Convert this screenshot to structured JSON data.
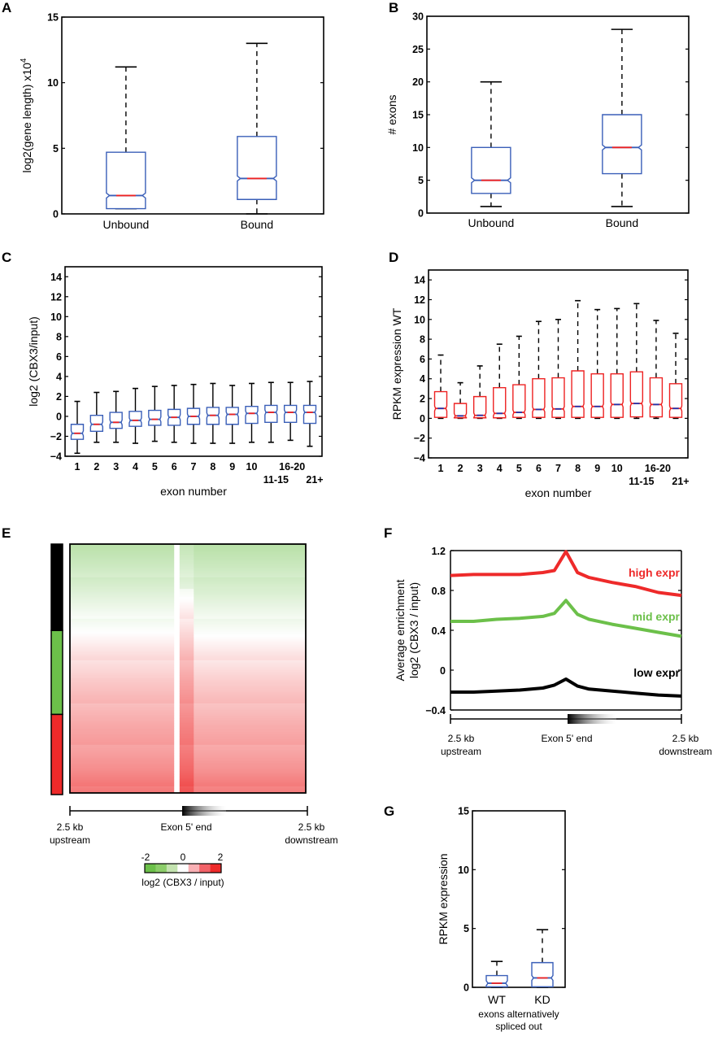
{
  "figure": {
    "panel_letters": [
      "A",
      "B",
      "C",
      "D",
      "E",
      "F",
      "G"
    ]
  },
  "chart_data": [
    {
      "id": "A",
      "type": "box",
      "title": "",
      "xlabel": "",
      "ylabel": "log2(gene length) x10",
      "ylabel_exponent": "4",
      "ylim": [
        0,
        15
      ],
      "yticks": [
        0,
        5,
        10,
        15
      ],
      "categories": [
        "Unbound",
        "Bound"
      ],
      "notched": true,
      "box_color": "#3a5fb8",
      "median_color": "#ee2222",
      "boxes": [
        {
          "label": "Unbound",
          "whisker_low": 0.4,
          "q1": 0.4,
          "median": 1.4,
          "q3": 4.7,
          "whisker_high": 11.2
        },
        {
          "label": "Bound",
          "whisker_low": 0.0,
          "q1": 1.1,
          "median": 2.7,
          "q3": 5.9,
          "whisker_high": 13.0
        }
      ]
    },
    {
      "id": "B",
      "type": "box",
      "title": "",
      "xlabel": "",
      "ylabel": "# exons",
      "ylim": [
        0,
        30
      ],
      "yticks": [
        0,
        5,
        10,
        15,
        20,
        25,
        30
      ],
      "categories": [
        "Unbound",
        "Bound"
      ],
      "notched": true,
      "box_color": "#3a5fb8",
      "median_color": "#ee2222",
      "boxes": [
        {
          "label": "Unbound",
          "whisker_low": 1,
          "q1": 3,
          "median": 5,
          "q3": 10,
          "whisker_high": 20
        },
        {
          "label": "Bound",
          "whisker_low": 1,
          "q1": 6,
          "median": 10,
          "q3": 15,
          "whisker_high": 28
        }
      ]
    },
    {
      "id": "C",
      "type": "box",
      "title": "",
      "xlabel": "exon number",
      "ylabel": "log2 (CBX3/input)",
      "ylim": [
        -4,
        15
      ],
      "yticks": [
        -4,
        -2,
        0,
        2,
        4,
        6,
        8,
        10,
        12,
        14
      ],
      "categories": [
        "1",
        "2",
        "3",
        "4",
        "5",
        "6",
        "7",
        "8",
        "9",
        "10",
        "11-15",
        "16-20",
        "21+"
      ],
      "tick_row": [
        0,
        0,
        0,
        0,
        0,
        0,
        0,
        0,
        0,
        0,
        1,
        0,
        1
      ],
      "notched": true,
      "box_color": "#3a5fb8",
      "median_color": "#ee2222",
      "boxes": [
        {
          "label": "1",
          "whisker_low": -3.7,
          "q1": -2.3,
          "median": -1.7,
          "q3": -0.8,
          "whisker_high": 1.5
        },
        {
          "label": "2",
          "whisker_low": -2.6,
          "q1": -1.5,
          "median": -0.8,
          "q3": 0.1,
          "whisker_high": 2.4
        },
        {
          "label": "3",
          "whisker_low": -2.6,
          "q1": -1.2,
          "median": -0.6,
          "q3": 0.4,
          "whisker_high": 2.5
        },
        {
          "label": "4",
          "whisker_low": -2.7,
          "q1": -1.0,
          "median": -0.4,
          "q3": 0.5,
          "whisker_high": 2.8
        },
        {
          "label": "5",
          "whisker_low": -2.5,
          "q1": -0.9,
          "median": -0.3,
          "q3": 0.6,
          "whisker_high": 3.0
        },
        {
          "label": "6",
          "whisker_low": -2.6,
          "q1": -0.9,
          "median": -0.1,
          "q3": 0.7,
          "whisker_high": 3.1
        },
        {
          "label": "7",
          "whisker_low": -2.7,
          "q1": -0.8,
          "median": 0.0,
          "q3": 0.8,
          "whisker_high": 3.2
        },
        {
          "label": "8",
          "whisker_low": -2.7,
          "q1": -0.8,
          "median": 0.1,
          "q3": 0.9,
          "whisker_high": 3.3
        },
        {
          "label": "9",
          "whisker_low": -2.7,
          "q1": -0.8,
          "median": 0.2,
          "q3": 0.9,
          "whisker_high": 3.1
        },
        {
          "label": "10",
          "whisker_low": -2.6,
          "q1": -0.7,
          "median": 0.3,
          "q3": 1.0,
          "whisker_high": 3.3
        },
        {
          "label": "11-15",
          "whisker_low": -2.6,
          "q1": -0.6,
          "median": 0.4,
          "q3": 1.1,
          "whisker_high": 3.4
        },
        {
          "label": "16-20",
          "whisker_low": -2.4,
          "q1": -0.6,
          "median": 0.4,
          "q3": 1.1,
          "whisker_high": 3.4
        },
        {
          "label": "21+",
          "whisker_low": -3.0,
          "q1": -0.7,
          "median": 0.4,
          "q3": 1.1,
          "whisker_high": 3.5
        }
      ]
    },
    {
      "id": "D",
      "type": "box",
      "title": "",
      "xlabel": "exon number",
      "ylabel": "RPKM expression WT",
      "ylim": [
        -4,
        15
      ],
      "yticks": [
        -4,
        -2,
        0,
        2,
        4,
        6,
        8,
        10,
        12,
        14
      ],
      "categories": [
        "1",
        "2",
        "3",
        "4",
        "5",
        "6",
        "7",
        "8",
        "9",
        "10",
        "11-15",
        "16-20",
        "21+"
      ],
      "tick_row": [
        0,
        0,
        0,
        0,
        0,
        0,
        0,
        0,
        0,
        0,
        1,
        0,
        1
      ],
      "notched": true,
      "box_color": "#ee2222",
      "median_color": "#2233aa",
      "boxes": [
        {
          "label": "1",
          "whisker_low": 0,
          "q1": 0.1,
          "median": 1.0,
          "q3": 2.7,
          "whisker_high": 6.4
        },
        {
          "label": "2",
          "whisker_low": 0,
          "q1": 0.05,
          "median": 0.25,
          "q3": 1.5,
          "whisker_high": 3.6
        },
        {
          "label": "3",
          "whisker_low": 0,
          "q1": 0.05,
          "median": 0.3,
          "q3": 2.2,
          "whisker_high": 5.3
        },
        {
          "label": "4",
          "whisker_low": 0,
          "q1": 0.05,
          "median": 0.5,
          "q3": 3.1,
          "whisker_high": 7.5
        },
        {
          "label": "5",
          "whisker_low": 0,
          "q1": 0.1,
          "median": 0.6,
          "q3": 3.4,
          "whisker_high": 8.3
        },
        {
          "label": "6",
          "whisker_low": 0,
          "q1": 0.1,
          "median": 0.9,
          "q3": 4.0,
          "whisker_high": 9.8
        },
        {
          "label": "7",
          "whisker_low": 0,
          "q1": 0.1,
          "median": 0.95,
          "q3": 4.1,
          "whisker_high": 10.0
        },
        {
          "label": "8",
          "whisker_low": 0,
          "q1": 0.1,
          "median": 1.2,
          "q3": 4.8,
          "whisker_high": 11.9
        },
        {
          "label": "9",
          "whisker_low": 0,
          "q1": 0.1,
          "median": 1.2,
          "q3": 4.5,
          "whisker_high": 11.0
        },
        {
          "label": "10",
          "whisker_low": 0,
          "q1": 0.1,
          "median": 1.4,
          "q3": 4.5,
          "whisker_high": 11.1
        },
        {
          "label": "11-15",
          "whisker_low": 0,
          "q1": 0.15,
          "median": 1.5,
          "q3": 4.7,
          "whisker_high": 11.6
        },
        {
          "label": "16-20",
          "whisker_low": 0,
          "q1": 0.15,
          "median": 1.4,
          "q3": 4.1,
          "whisker_high": 9.9
        },
        {
          "label": "21+",
          "whisker_low": 0,
          "q1": 0.1,
          "median": 1.0,
          "q3": 3.5,
          "whisker_high": 8.6
        }
      ]
    },
    {
      "id": "E",
      "type": "heatmap",
      "title": "",
      "x_left_label": [
        "2.5 kb",
        "upstream"
      ],
      "x_center_label": "Exon 5'  end",
      "x_right_label": [
        "2.5 kb",
        "downstream"
      ],
      "group_bar": [
        {
          "name": "low expr",
          "color": "#000000",
          "fraction": 0.345
        },
        {
          "name": "mid expr",
          "color": "#6cc04a",
          "fraction": 0.335
        },
        {
          "name": "high expr",
          "color": "#ee2a2a",
          "fraction": 0.32
        }
      ],
      "description": "rows sorted by expression; top rows green (negative), bottom rows red (positive), enrichment stripe at exon 5' end",
      "row_profile_top_to_bottom": [
        -0.9,
        -0.7,
        -0.45,
        -0.2,
        0.05,
        0.3,
        0.5,
        0.65,
        0.8,
        0.9,
        1.05,
        1.3
      ],
      "center_boost": 0.35,
      "colorbar": {
        "label": "log2 (CBX3 / input)",
        "ticks": [
          -2,
          0,
          2
        ],
        "range": [
          -2,
          2
        ],
        "colors": [
          "#6cc04a",
          "#8ccd6a",
          "#c4e3b0",
          "#ffffff",
          "#f9b0b4",
          "#f26268",
          "#ee2a2a"
        ]
      }
    },
    {
      "id": "F",
      "type": "line",
      "title": "",
      "xlabel_left": [
        "2.5 kb",
        "upstream"
      ],
      "xlabel_center": "Exon 5' end",
      "xlabel_right": [
        "2.5 kb",
        "downstream"
      ],
      "ylabel": [
        "Average enrichment",
        "log2 (CBX3 / input)"
      ],
      "ylim": [
        -0.4,
        1.2
      ],
      "yticks": [
        -0.4,
        0,
        0.4,
        0.8,
        1.2
      ],
      "ytick_labels": [
        "-0.4",
        "0",
        "0.4",
        "0.8",
        "1.2"
      ],
      "x": [
        -2500,
        -2000,
        -1500,
        -1000,
        -500,
        -250,
        0,
        250,
        500,
        1000,
        1500,
        2000,
        2500
      ],
      "series": [
        {
          "name": "high expr",
          "color": "#ee2a2a",
          "values": [
            0.95,
            0.96,
            0.96,
            0.96,
            0.98,
            1.0,
            1.19,
            0.98,
            0.93,
            0.88,
            0.84,
            0.78,
            0.75
          ]
        },
        {
          "name": "mid expr",
          "color": "#6cc04a",
          "values": [
            0.49,
            0.49,
            0.51,
            0.52,
            0.54,
            0.57,
            0.7,
            0.56,
            0.51,
            0.46,
            0.42,
            0.38,
            0.34
          ]
        },
        {
          "name": "low expr",
          "color": "#000000",
          "values": [
            -0.22,
            -0.22,
            -0.21,
            -0.2,
            -0.18,
            -0.15,
            -0.09,
            -0.16,
            -0.19,
            -0.21,
            -0.23,
            -0.25,
            -0.26
          ]
        }
      ],
      "legend": "inline-right"
    },
    {
      "id": "G",
      "type": "box",
      "title": "",
      "xlabel": [
        "exons alternatively",
        "spliced out"
      ],
      "ylabel": "RPKM expression",
      "ylim": [
        0,
        15
      ],
      "yticks": [
        0,
        5,
        10,
        15
      ],
      "categories": [
        "WT",
        "KD"
      ],
      "notched": true,
      "box_color": "#3a5fb8",
      "median_color": "#ee2222",
      "boxes": [
        {
          "label": "WT",
          "whisker_low": 0,
          "q1": 0.05,
          "median": 0.35,
          "q3": 1.0,
          "whisker_high": 2.2
        },
        {
          "label": "KD",
          "whisker_low": 0,
          "q1": 0.05,
          "median": 0.8,
          "q3": 2.1,
          "whisker_high": 4.9
        }
      ]
    }
  ]
}
